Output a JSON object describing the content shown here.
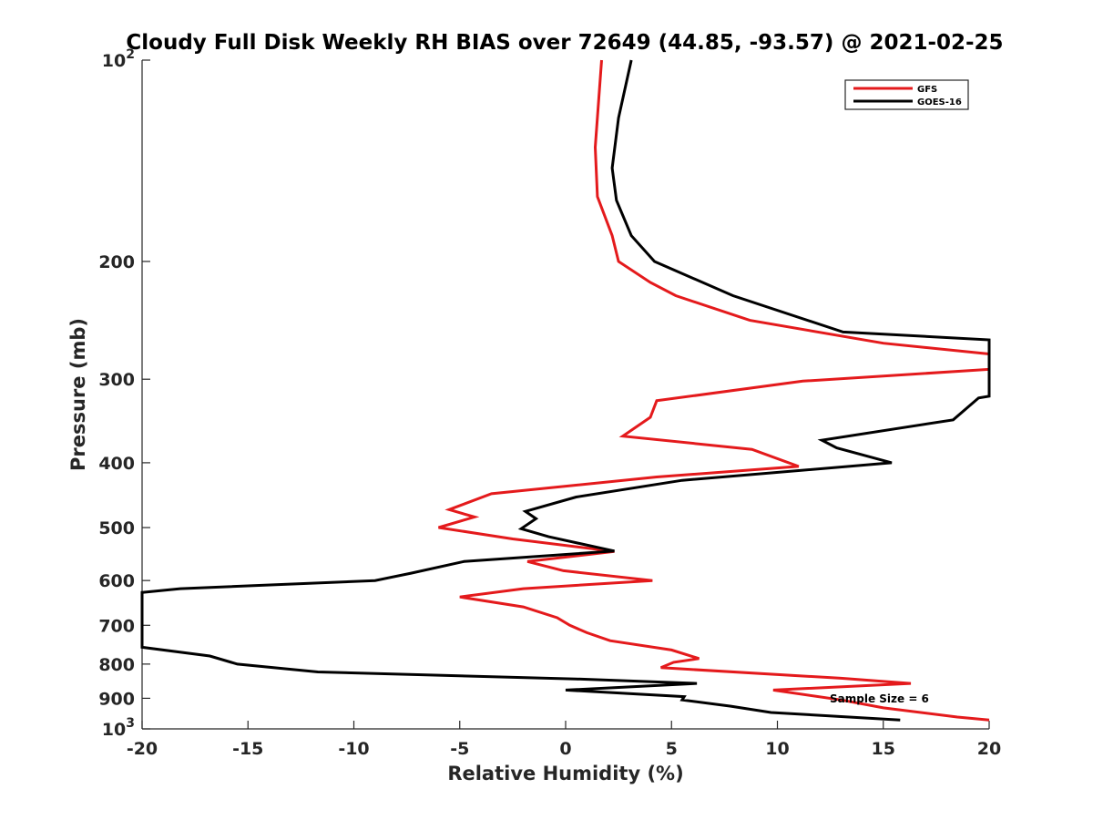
{
  "chart_data": {
    "type": "line",
    "title": "Cloudy Full Disk Weekly RH BIAS over 72649 (44.85, -93.57) @ 2021-02-25",
    "xlabel": "Relative Humidity (%)",
    "ylabel": "Pressure (mb)",
    "xlim": [
      -20,
      20
    ],
    "ylim": [
      100,
      1000
    ],
    "y_scale": "log",
    "y_reversed": true,
    "grid": false,
    "legend_position": "top-right",
    "x_ticks": [
      {
        "value": -20,
        "label": "-20"
      },
      {
        "value": -15,
        "label": "-15"
      },
      {
        "value": -10,
        "label": "-10"
      },
      {
        "value": -5,
        "label": "-5"
      },
      {
        "value": 0,
        "label": "0"
      },
      {
        "value": 5,
        "label": "5"
      },
      {
        "value": 10,
        "label": "10"
      },
      {
        "value": 15,
        "label": "15"
      },
      {
        "value": 20,
        "label": "20"
      }
    ],
    "y_ticks": [
      {
        "value": 100,
        "base": "10",
        "exp": "2"
      },
      {
        "value": 200,
        "label": "200"
      },
      {
        "value": 300,
        "label": "300"
      },
      {
        "value": 400,
        "label": "400"
      },
      {
        "value": 500,
        "label": "500"
      },
      {
        "value": 600,
        "label": "600"
      },
      {
        "value": 700,
        "label": "700"
      },
      {
        "value": 800,
        "label": "800"
      },
      {
        "value": 900,
        "label": "900"
      },
      {
        "value": 1000,
        "base": "10",
        "exp": "3"
      }
    ],
    "annotation": "Sample Size = 6",
    "series": [
      {
        "name": "GFS",
        "color": "#e41a1c",
        "points": [
          [
            1.7,
            100
          ],
          [
            1.4,
            135
          ],
          [
            1.5,
            160
          ],
          [
            2.2,
            183
          ],
          [
            2.5,
            200
          ],
          [
            4.0,
            215
          ],
          [
            5.2,
            225
          ],
          [
            8.7,
            245
          ],
          [
            15.0,
            265
          ],
          [
            20.0,
            275
          ],
          [
            20.0,
            290
          ],
          [
            11.2,
            302
          ],
          [
            4.3,
            323
          ],
          [
            4.0,
            342
          ],
          [
            2.7,
            365
          ],
          [
            8.8,
            382
          ],
          [
            11.0,
            405
          ],
          [
            4.3,
            420
          ],
          [
            -3.5,
            445
          ],
          [
            -5.5,
            470
          ],
          [
            -4.3,
            482
          ],
          [
            -6.0,
            500
          ],
          [
            -2.5,
            520
          ],
          [
            2.3,
            543
          ],
          [
            -1.8,
            562
          ],
          [
            -0.1,
            580
          ],
          [
            4.1,
            600
          ],
          [
            -2.0,
            617
          ],
          [
            -5.0,
            635
          ],
          [
            -2.0,
            657
          ],
          [
            -0.4,
            682
          ],
          [
            0.2,
            700
          ],
          [
            1.0,
            718
          ],
          [
            2.1,
            738
          ],
          [
            5.0,
            762
          ],
          [
            6.3,
            785
          ],
          [
            5.1,
            795
          ],
          [
            4.5,
            810
          ],
          [
            13.0,
            840
          ],
          [
            16.3,
            855
          ],
          [
            9.8,
            875
          ],
          [
            13.0,
            905
          ],
          [
            15.0,
            930
          ],
          [
            18.5,
            960
          ],
          [
            20.0,
            970
          ]
        ]
      },
      {
        "name": "GOES-16",
        "color": "#000000",
        "points": [
          [
            3.1,
            100
          ],
          [
            2.5,
            122
          ],
          [
            2.2,
            145
          ],
          [
            2.4,
            162
          ],
          [
            3.1,
            183
          ],
          [
            4.2,
            200
          ],
          [
            7.9,
            225
          ],
          [
            13.1,
            255
          ],
          [
            20.0,
            262
          ],
          [
            20.0,
            318
          ],
          [
            19.5,
            320
          ],
          [
            18.3,
            345
          ],
          [
            12.1,
            370
          ],
          [
            12.8,
            380
          ],
          [
            15.4,
            400
          ],
          [
            5.5,
            425
          ],
          [
            0.5,
            450
          ],
          [
            -1.9,
            473
          ],
          [
            -1.4,
            485
          ],
          [
            -2.1,
            502
          ],
          [
            -0.8,
            516
          ],
          [
            2.3,
            542
          ],
          [
            -4.8,
            562
          ],
          [
            -7.3,
            585
          ],
          [
            -9.0,
            600
          ],
          [
            -18.2,
            617
          ],
          [
            -20.0,
            625
          ],
          [
            -20.0,
            755
          ],
          [
            -16.8,
            778
          ],
          [
            -15.5,
            800
          ],
          [
            -11.7,
            822
          ],
          [
            0.5,
            842
          ],
          [
            6.2,
            855
          ],
          [
            0.0,
            875
          ],
          [
            5.6,
            895
          ],
          [
            5.5,
            905
          ],
          [
            7.8,
            925
          ],
          [
            9.7,
            945
          ],
          [
            15.8,
            970
          ]
        ]
      }
    ]
  }
}
